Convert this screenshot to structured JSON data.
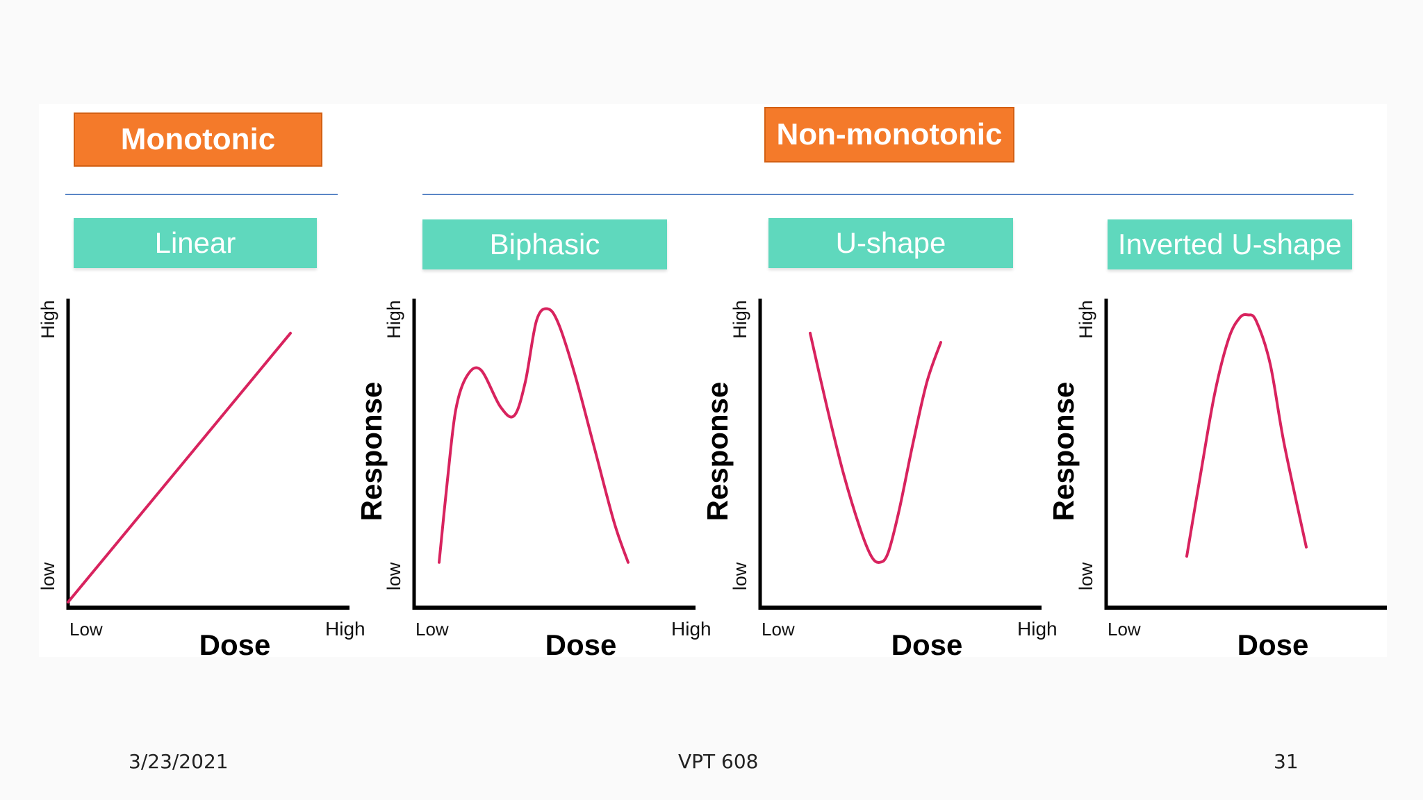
{
  "categories": {
    "monotonic": "Monotonic",
    "non_monotonic": "Non-monotonic"
  },
  "colors": {
    "orange": "#f47a2a",
    "teal": "#5fd8bd",
    "rule": "#5a86c6",
    "curve": "#d8235e",
    "axis": "#000000"
  },
  "chart_data": [
    {
      "type": "line",
      "title": "Linear",
      "xlabel": "Dose",
      "ylabel": "",
      "x_ticks": [
        "Low",
        "High"
      ],
      "y_ticks": [
        "low",
        "High"
      ],
      "x": [
        0.0,
        0.8
      ],
      "y": [
        0.0,
        0.88
      ]
    },
    {
      "type": "line",
      "title": "Biphasic",
      "xlabel": "Dose",
      "ylabel": "Response",
      "x_ticks": [
        "Low",
        "High"
      ],
      "y_ticks": [
        "low",
        "High"
      ],
      "x": [
        0.09,
        0.12,
        0.15,
        0.19,
        0.24,
        0.31,
        0.36,
        0.4,
        0.44,
        0.48,
        0.52,
        0.58,
        0.65,
        0.72,
        0.77
      ],
      "y": [
        0.13,
        0.4,
        0.63,
        0.74,
        0.76,
        0.64,
        0.61,
        0.72,
        0.92,
        0.96,
        0.91,
        0.74,
        0.5,
        0.26,
        0.13
      ]
    },
    {
      "type": "line",
      "title": "U-shape",
      "xlabel": "Dose",
      "ylabel": "Response",
      "x_ticks": [
        "Low",
        "High"
      ],
      "y_ticks": [
        "low",
        "High"
      ],
      "x": [
        0.18,
        0.24,
        0.3,
        0.36,
        0.4,
        0.43,
        0.46,
        0.5,
        0.55,
        0.6,
        0.65
      ],
      "y": [
        0.88,
        0.64,
        0.42,
        0.24,
        0.15,
        0.13,
        0.16,
        0.3,
        0.52,
        0.72,
        0.85
      ]
    },
    {
      "type": "line",
      "title": "Inverted U-shape",
      "xlabel": "Dose",
      "ylabel": "Response",
      "x_ticks": [
        "Low"
      ],
      "y_ticks": [
        "low",
        "High"
      ],
      "x": [
        0.29,
        0.34,
        0.39,
        0.44,
        0.48,
        0.51,
        0.54,
        0.59,
        0.64,
        0.72
      ],
      "y": [
        0.15,
        0.42,
        0.68,
        0.86,
        0.93,
        0.94,
        0.92,
        0.78,
        0.52,
        0.18
      ]
    }
  ],
  "footer": {
    "date": "3/23/2021",
    "course": "VPT 608",
    "page": "31"
  }
}
